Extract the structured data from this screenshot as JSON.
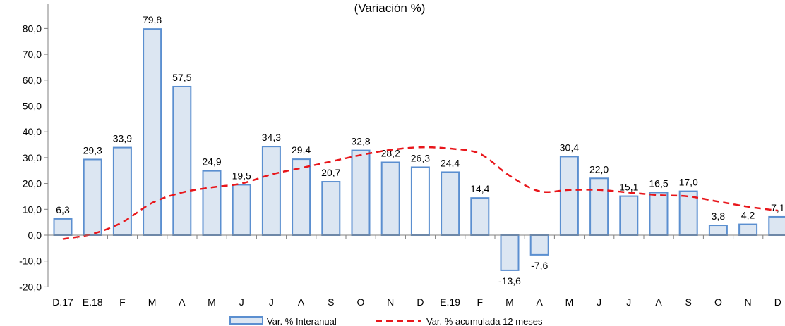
{
  "chart_data": {
    "type": "bar",
    "subtitle": "(Variación %)",
    "categories": [
      "D.17",
      "E.18",
      "F",
      "M",
      "A",
      "M",
      "J",
      "J",
      "A",
      "S",
      "O",
      "N",
      "D",
      "E.19",
      "F",
      "M",
      "A",
      "M",
      "J",
      "J",
      "A",
      "S",
      "O",
      "N",
      "D"
    ],
    "series": [
      {
        "name": "Var. % Interanual",
        "type": "bar",
        "values": [
          6.3,
          29.3,
          33.9,
          79.8,
          57.5,
          24.9,
          19.5,
          34.3,
          29.4,
          20.7,
          32.8,
          28.2,
          26.3,
          24.4,
          14.4,
          -13.6,
          -7.6,
          30.4,
          22.0,
          15.1,
          16.5,
          17.0,
          3.8,
          4.2,
          7.1
        ],
        "labels": [
          "6,3",
          "29,3",
          "33,9",
          "79,8",
          "57,5",
          "24,9",
          "19,5",
          "34,3",
          "29,4",
          "20,7",
          "32,8",
          "28,2",
          "26,3",
          "24,4",
          "14,4",
          "-13,6",
          "-7,6",
          "30,4",
          "22,0",
          "15,1",
          "16,5",
          "17,0",
          "3,8",
          "4,2",
          "7,1"
        ],
        "color": "#dce6f2",
        "border_color": "#5b8fd0",
        "highlight_fill": "#ffffff",
        "highlight_index": 12
      },
      {
        "name": "Var. % acumulada 12 meses",
        "type": "line",
        "style": "dashed",
        "color": "#e8161b",
        "values": [
          -1.5,
          0.5,
          5.0,
          12.5,
          16.5,
          18.5,
          20.0,
          23.5,
          26.0,
          28.5,
          31.0,
          33.0,
          34.0,
          33.5,
          31.5,
          23.0,
          17.0,
          17.5,
          17.5,
          16.5,
          15.5,
          15.0,
          13.0,
          11.0,
          9.5
        ]
      }
    ],
    "ylim": [
      -20,
      85
    ],
    "yticks": [
      80,
      70,
      60,
      50,
      40,
      30,
      20,
      10,
      0,
      -10,
      -20
    ],
    "ytick_labels": [
      "80,0",
      "70,0",
      "60,0",
      "50,0",
      "40,0",
      "30,0",
      "20,0",
      "10,0",
      "0,0",
      "-10,0",
      "-20,0"
    ],
    "legend_position": "bottom",
    "grid": false
  }
}
